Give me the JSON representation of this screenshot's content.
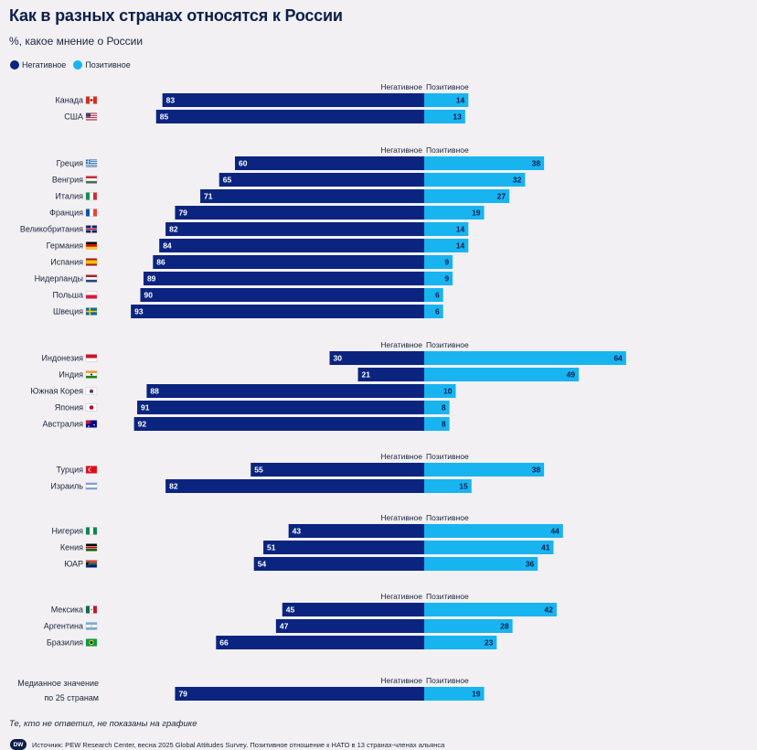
{
  "header": {
    "title": "Как в разных странах относятся к России",
    "subtitle": "%, какое мнение о России"
  },
  "legend": {
    "negative_label": "Негативное",
    "positive_label": "Позитивное"
  },
  "colors": {
    "negative": "#0a2480",
    "positive": "#18b4f0",
    "negative_text": "#ffffff",
    "positive_text": "#0b1e4d"
  },
  "chart_data": {
    "type": "bar",
    "orientation": "horizontal-diverging",
    "series_names": [
      "Негативное",
      "Позитивное"
    ],
    "column_headers": {
      "negative": "Негативное",
      "positive": "Позитивное"
    },
    "groups": [
      {
        "rows": [
          {
            "label": "Канада",
            "flag": "flag-canada",
            "negative": 83,
            "positive": 14
          },
          {
            "label": "США",
            "flag": "flag-usa",
            "negative": 85,
            "positive": 13
          }
        ]
      },
      {
        "rows": [
          {
            "label": "Греция",
            "flag": "flag-greece",
            "negative": 60,
            "positive": 38
          },
          {
            "label": "Венгрия",
            "flag": "flag-hungary",
            "negative": 65,
            "positive": 32
          },
          {
            "label": "Италия",
            "flag": "flag-italy",
            "negative": 71,
            "positive": 27
          },
          {
            "label": "Франция",
            "flag": "flag-france",
            "negative": 79,
            "positive": 19
          },
          {
            "label": "Великобритания",
            "flag": "flag-uk",
            "negative": 82,
            "positive": 14
          },
          {
            "label": "Германия",
            "flag": "flag-germany",
            "negative": 84,
            "positive": 14
          },
          {
            "label": "Испания",
            "flag": "flag-spain",
            "negative": 86,
            "positive": 9
          },
          {
            "label": "Нидерланды",
            "flag": "flag-netherlands",
            "negative": 89,
            "positive": 9
          },
          {
            "label": "Польша",
            "flag": "flag-poland",
            "negative": 90,
            "positive": 6
          },
          {
            "label": "Швеция",
            "flag": "flag-sweden",
            "negative": 93,
            "positive": 6
          }
        ]
      },
      {
        "rows": [
          {
            "label": "Индонезия",
            "flag": "flag-indonesia",
            "negative": 30,
            "positive": 64
          },
          {
            "label": "Индия",
            "flag": "flag-india",
            "negative": 21,
            "positive": 49
          },
          {
            "label": "Южная Корея",
            "flag": "flag-south-korea",
            "negative": 88,
            "positive": 10
          },
          {
            "label": "Япония",
            "flag": "flag-japan",
            "negative": 91,
            "positive": 8
          },
          {
            "label": "Австралия",
            "flag": "flag-australia",
            "negative": 92,
            "positive": 8
          }
        ]
      },
      {
        "rows": [
          {
            "label": "Турция",
            "flag": "flag-turkey",
            "negative": 55,
            "positive": 38
          },
          {
            "label": "Израиль",
            "flag": "flag-israel",
            "negative": 82,
            "positive": 15
          }
        ]
      },
      {
        "rows": [
          {
            "label": "Нигерия",
            "flag": "flag-nigeria",
            "negative": 43,
            "positive": 44
          },
          {
            "label": "Кения",
            "flag": "flag-kenya",
            "negative": 51,
            "positive": 41
          },
          {
            "label": "ЮАР",
            "flag": "flag-south-africa",
            "negative": 54,
            "positive": 36
          }
        ]
      },
      {
        "rows": [
          {
            "label": "Мексика",
            "flag": "flag-mexico",
            "negative": 45,
            "positive": 42
          },
          {
            "label": "Аргентина",
            "flag": "flag-argentina",
            "negative": 47,
            "positive": 28
          },
          {
            "label": "Бразилия",
            "flag": "flag-brazil",
            "negative": 66,
            "positive": 23
          }
        ]
      },
      {
        "rows": [
          {
            "label": "Медианное значение по 25 странам",
            "label_lines": [
              "Медианное значение",
              "по 25 странам"
            ],
            "negative": 79,
            "positive": 19
          }
        ]
      }
    ]
  },
  "footnote": "Те, кто не ответил, не показаны на графике",
  "source": {
    "logo_text": "DW",
    "text": "Источник: PEW Research Center, весна 2025 Global Attitudes Survey. Позитивное отношение к НАТО в 13 странах-членах альянса"
  }
}
